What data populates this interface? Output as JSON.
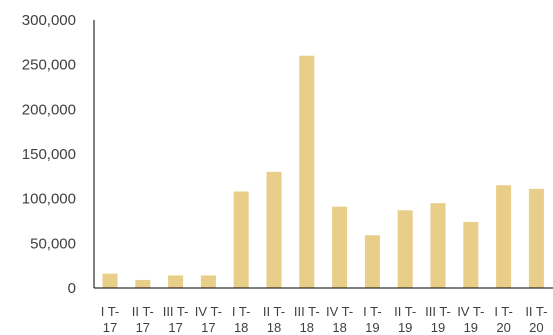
{
  "chart_data": {
    "type": "bar",
    "categories": [
      "I T-17",
      "II T-17",
      "III T-17",
      "IV T-17",
      "I T-18",
      "II T-18",
      "III T-18",
      "IV T-18",
      "I T-19",
      "II T-19",
      "III T-19",
      "IV T-19",
      "I T-20",
      "II T-20"
    ],
    "category_lines": [
      [
        "I T-",
        "17"
      ],
      [
        "II T-",
        "17"
      ],
      [
        "III T-",
        "17"
      ],
      [
        "IV T-",
        "17"
      ],
      [
        "I T-",
        "18"
      ],
      [
        "II T-",
        "18"
      ],
      [
        "III T-",
        "18"
      ],
      [
        "IV T-",
        "18"
      ],
      [
        "I T-",
        "19"
      ],
      [
        "II T-",
        "19"
      ],
      [
        "III T-",
        "19"
      ],
      [
        "IV T-",
        "19"
      ],
      [
        "I T-",
        "20"
      ],
      [
        "II T-",
        "20"
      ]
    ],
    "values": [
      16000,
      9000,
      14000,
      14000,
      108000,
      130000,
      260000,
      91000,
      59000,
      87000,
      95000,
      74000,
      115000,
      111000
    ],
    "ylim": [
      0,
      300000
    ],
    "yticks": [
      0,
      50000,
      100000,
      150000,
      200000,
      250000,
      300000
    ],
    "ytick_labels": [
      "0",
      "50,000",
      "100,000",
      "150,000",
      "200,000",
      "250,000",
      "300,000"
    ],
    "title": "",
    "xlabel": "",
    "ylabel": "",
    "grid": false,
    "legend": "none",
    "bar_color": "#E8CE88",
    "axis_color": "#000000"
  }
}
